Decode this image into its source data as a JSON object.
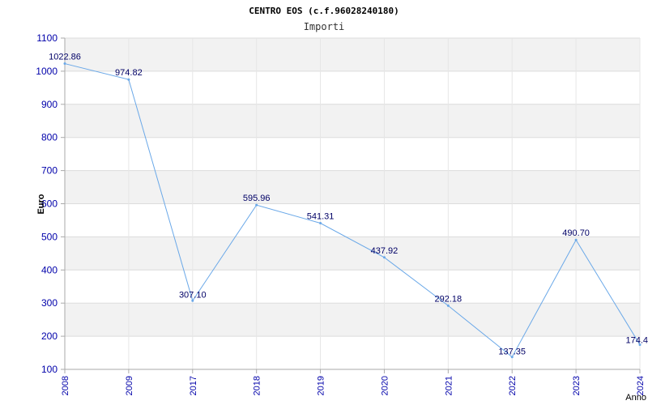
{
  "chart_data": {
    "type": "line",
    "title": "CENTRO EOS (c.f.96028240180)",
    "subtitle": "Importi",
    "xlabel": "Anno",
    "ylabel": "Euro",
    "categories": [
      "2008",
      "2009",
      "2017",
      "2018",
      "2019",
      "2020",
      "2021",
      "2022",
      "2023",
      "2024"
    ],
    "series": [
      {
        "values": [
          1022.86,
          974.82,
          307.1,
          595.96,
          541.31,
          437.92,
          292.18,
          137.35,
          490.7,
          174.4
        ],
        "labels": [
          "1022.86",
          "974.82",
          "307.10",
          "595.96",
          "541.31",
          "437.92",
          "292.18",
          "137.35",
          "490.70",
          "174.4"
        ]
      }
    ],
    "ylim": [
      100,
      1100
    ],
    "yticks": [
      "100",
      "200",
      "300",
      "400",
      "500",
      "600",
      "700",
      "800",
      "900",
      "1000",
      "1100"
    ],
    "grid": true,
    "colors": {
      "line": "#6aa8e8",
      "band": "#f2f2f2",
      "tick": "#0000aa"
    }
  }
}
